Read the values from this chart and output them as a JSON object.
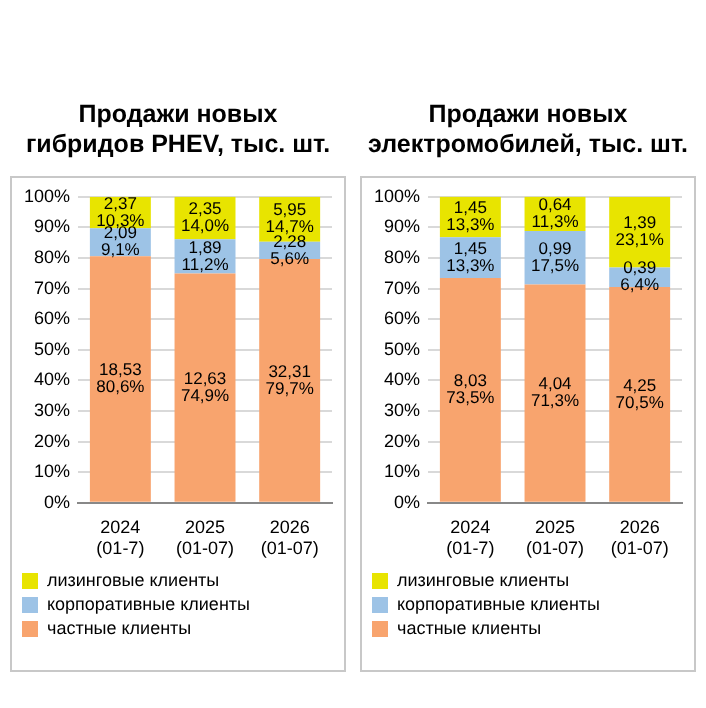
{
  "chart_data": [
    {
      "type": "bar",
      "title": "Продажи новых\nгибридов PHEV, тыс. шт.",
      "stacked": true,
      "categories": [
        "2024\n(01-7)",
        "2025\n(01-07)",
        "2026\n(01-07)"
      ],
      "series": [
        {
          "name": "частные клиенты",
          "color": "#f8a46e",
          "values": [
            80.6,
            74.9,
            79.7
          ],
          "value_labels": [
            "18,53\n80,6%",
            "12,63\n74,9%",
            "32,31\n79,7%"
          ]
        },
        {
          "name": "корпоративные клиенты",
          "color": "#9dc3e6",
          "values": [
            9.1,
            11.2,
            5.6
          ],
          "value_labels": [
            "2,09\n9,1%",
            "1,89\n11,2%",
            "2,28\n5,6%"
          ]
        },
        {
          "name": "лизинговые клиенты",
          "color": "#e8e400",
          "values": [
            10.3,
            14.0,
            14.7
          ],
          "value_labels": [
            "2,37\n10,3%",
            "2,35\n14,0%",
            "5,95\n14,7%"
          ]
        }
      ],
      "ylim": [
        0,
        100
      ],
      "yticks": [
        {
          "value": 0,
          "label": "0%"
        },
        {
          "value": 10,
          "label": "10%"
        },
        {
          "value": 20,
          "label": "20%"
        },
        {
          "value": 30,
          "label": "30%"
        },
        {
          "value": 40,
          "label": "40%"
        },
        {
          "value": 50,
          "label": "50%"
        },
        {
          "value": 60,
          "label": "60%"
        },
        {
          "value": 70,
          "label": "70%"
        },
        {
          "value": 80,
          "label": "80%"
        },
        {
          "value": 90,
          "label": "90%"
        },
        {
          "value": 100,
          "label": "100%"
        }
      ],
      "grid": "y",
      "legend": "bottom"
    },
    {
      "type": "bar",
      "title": "Продажи новых\nэлектромобилей, тыс. шт.",
      "stacked": true,
      "categories": [
        "2024\n(01-7)",
        "2025\n(01-07)",
        "2026\n(01-07)"
      ],
      "series": [
        {
          "name": "частные клиенты",
          "color": "#f8a46e",
          "values": [
            73.5,
            71.3,
            70.5
          ],
          "value_labels": [
            "8,03\n73,5%",
            "4,04\n71,3%",
            "4,25\n70,5%"
          ]
        },
        {
          "name": "корпоративные клиенты",
          "color": "#9dc3e6",
          "values": [
            13.3,
            17.5,
            6.4
          ],
          "value_labels": [
            "1,45\n13,3%",
            "0,99\n17,5%",
            "0,39\n6,4%"
          ]
        },
        {
          "name": "лизинговые клиенты",
          "color": "#e8e400",
          "values": [
            13.3,
            11.3,
            23.1
          ],
          "value_labels": [
            "1,45\n13,3%",
            "0,64\n11,3%",
            "1,39\n23,1%"
          ]
        }
      ],
      "ylim": [
        0,
        100
      ],
      "yticks": [
        {
          "value": 0,
          "label": "0%"
        },
        {
          "value": 10,
          "label": "10%"
        },
        {
          "value": 20,
          "label": "20%"
        },
        {
          "value": 30,
          "label": "30%"
        },
        {
          "value": 40,
          "label": "40%"
        },
        {
          "value": 50,
          "label": "50%"
        },
        {
          "value": 60,
          "label": "60%"
        },
        {
          "value": 70,
          "label": "70%"
        },
        {
          "value": 80,
          "label": "80%"
        },
        {
          "value": 90,
          "label": "90%"
        },
        {
          "value": 100,
          "label": "100%"
        }
      ],
      "grid": "y",
      "legend": "bottom"
    }
  ]
}
